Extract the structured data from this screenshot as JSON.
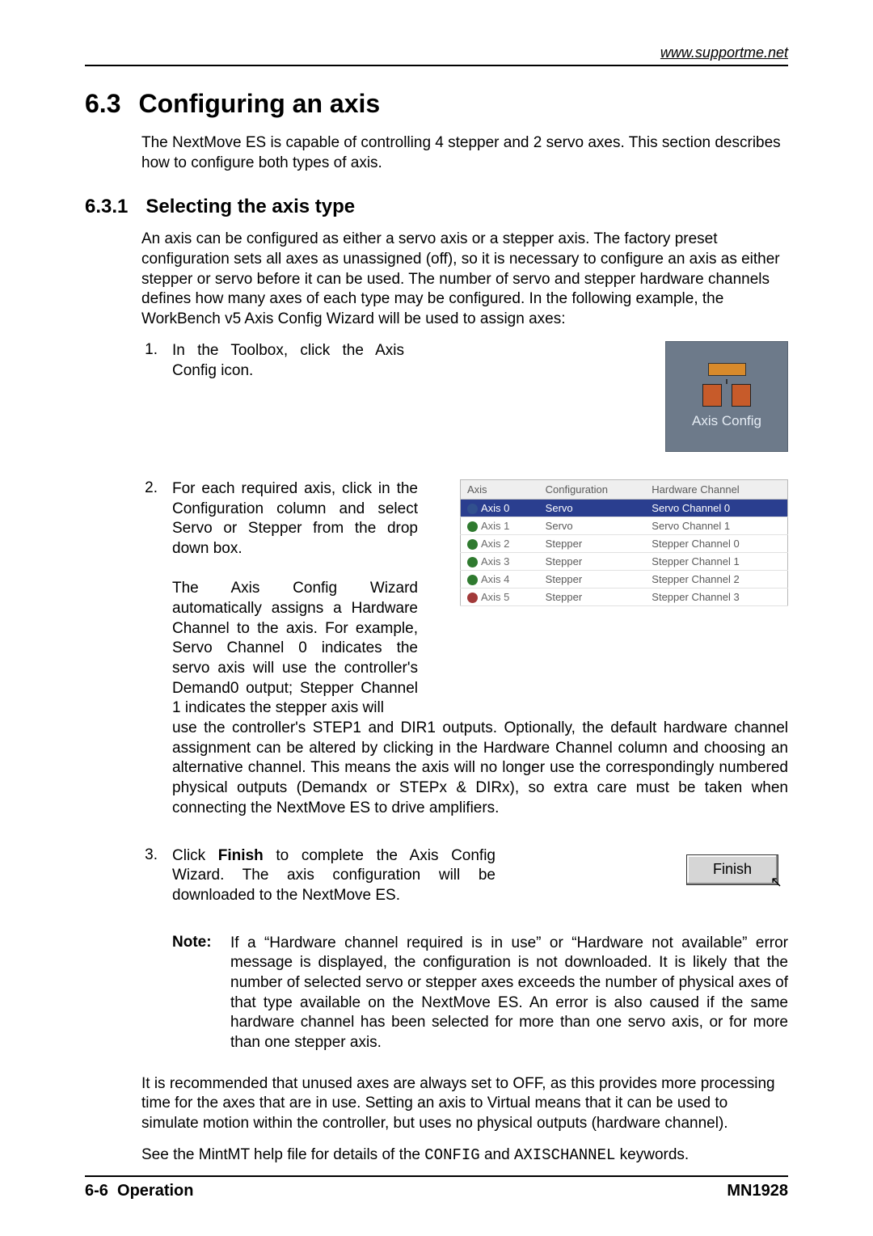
{
  "header_url": "www.supportme.net",
  "section": {
    "number": "6.3",
    "title": "Configuring an axis",
    "intro": "The NextMove ES is capable of controlling 4 stepper and 2 servo axes. This section describes how to configure both types of axis."
  },
  "subsection": {
    "number": "6.3.1",
    "title": "Selecting the axis type",
    "intro": "An axis can be configured as either a servo axis or a stepper axis. The factory preset configuration sets all axes as unassigned (off), so it is necessary to configure an axis as either stepper or servo before it can be used. The number of servo and stepper hardware channels defines how many axes of each type may be configured. In the following example, the WorkBench v5 Axis Config Wizard will be used to assign axes:"
  },
  "steps": {
    "s1": {
      "num": "1.",
      "text": "In the Toolbox, click the Axis Config icon.",
      "icon_label": "Axis Config"
    },
    "s2": {
      "num": "2.",
      "text_a": "For each required axis, click in the Configuration column and select Servo or Stepper from the drop down box.",
      "text_b": "The Axis Config Wizard automatically assigns a Hardware Channel to the axis. For example, Servo Channel 0 indicates the servo axis will use the controller's Demand0 output; Stepper Channel 1 indicates the stepper axis will",
      "continuation": "use the controller's STEP1 and DIR1 outputs. Optionally, the default hardware channel assignment can be altered by clicking in the Hardware Channel column and choosing an alternative channel. This means the axis will no longer use the correspondingly numbered physical outputs (Demandx or STEPx & DIRx), so extra care must be taken when connecting the NextMove ES to drive amplifiers."
    },
    "s3": {
      "num": "3.",
      "text_a": "Click ",
      "text_bold": "Finish",
      "text_b": " to complete the Axis Config Wizard. The axis configuration will be downloaded to the NextMove ES.",
      "button_label": "Finish"
    }
  },
  "wizard_table": {
    "headers": {
      "c0": "Axis",
      "c1": "Configuration",
      "c2": "Hardware Channel"
    },
    "rows": [
      {
        "axis": "Axis 0",
        "config": "Servo",
        "ch": "Servo Channel 0",
        "sel": true,
        "gear": "blue"
      },
      {
        "axis": "Axis 1",
        "config": "Servo",
        "ch": "Servo Channel 1",
        "sel": false,
        "gear": "green"
      },
      {
        "axis": "Axis 2",
        "config": "Stepper",
        "ch": "Stepper Channel 0",
        "sel": false,
        "gear": "green"
      },
      {
        "axis": "Axis 3",
        "config": "Stepper",
        "ch": "Stepper Channel 1",
        "sel": false,
        "gear": "green"
      },
      {
        "axis": "Axis 4",
        "config": "Stepper",
        "ch": "Stepper Channel 2",
        "sel": false,
        "gear": "green"
      },
      {
        "axis": "Axis 5",
        "config": "Stepper",
        "ch": "Stepper Channel 3",
        "sel": false,
        "gear": "red"
      }
    ]
  },
  "note": {
    "label": "Note:",
    "body": "If a “Hardware channel required is in use” or “Hardware not available” error message is displayed, the configuration is not downloaded. It is likely that the number of selected servo or stepper axes exceeds the number of physical axes of that type available on the NextMove ES. An error is also caused if the same hardware channel has been selected for more than one servo axis, or for more than one stepper axis."
  },
  "tail": {
    "p1": "It is recommended that unused axes are always set to OFF, as this provides more processing time for the axes that are in use.  Setting an axis to Virtual means that it can be used to simulate motion within the controller, but uses no physical outputs (hardware channel).",
    "p2_a": "See the MintMT help file for details of the ",
    "kw1": "CONFIG",
    "mid": " and ",
    "kw2": "AXISCHANNEL",
    "p2_b": " keywords."
  },
  "footer": {
    "left_a": "6-6",
    "left_b": "Operation",
    "right": "MN1928"
  },
  "colors": {
    "rule": "#000000",
    "icon_bg": "#6d7a8a",
    "sel_row": "#2a3e8f"
  }
}
